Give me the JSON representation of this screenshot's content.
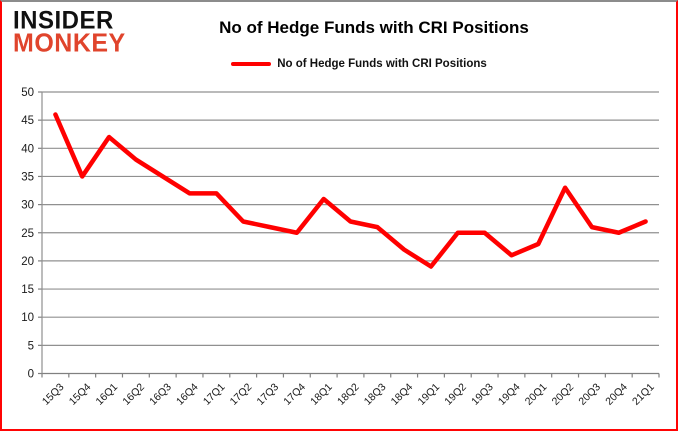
{
  "logo": {
    "line1": "INSIDER",
    "line2": "MONKEY"
  },
  "header": {
    "title": "No of Hedge Funds with CRI Positions"
  },
  "legend": {
    "label": "No of Hedge Funds with CRI Positions"
  },
  "colors": {
    "series_line": "#ff0000",
    "gridline": "#909090",
    "axis": "#808080",
    "tick_text": "#1a1a1a",
    "logo_black": "#111111",
    "logo_red": "#e0442c",
    "frame_border": "#ff0404"
  },
  "chart_data": {
    "type": "line",
    "title": "No of Hedge Funds with CRI Positions",
    "categories": [
      "15Q3",
      "15Q4",
      "16Q1",
      "16Q2",
      "16Q3",
      "16Q4",
      "17Q1",
      "17Q2",
      "17Q3",
      "17Q4",
      "18Q1",
      "18Q2",
      "18Q3",
      "18Q4",
      "19Q1",
      "19Q2",
      "19Q3",
      "19Q4",
      "20Q1",
      "20Q2",
      "20Q3",
      "20Q4",
      "21Q1"
    ],
    "series": [
      {
        "name": "No of Hedge Funds with CRI Positions",
        "color": "#ff0000",
        "values": [
          46,
          35,
          42,
          38,
          35,
          32,
          32,
          27,
          26,
          25,
          31,
          27,
          26,
          22,
          19,
          25,
          25,
          21,
          23,
          33,
          26,
          25,
          27
        ]
      }
    ],
    "xlabel": "",
    "ylabel": "",
    "ylim": [
      0,
      50
    ],
    "ytick_step": 5,
    "grid": true,
    "legend_position": "top-center"
  }
}
